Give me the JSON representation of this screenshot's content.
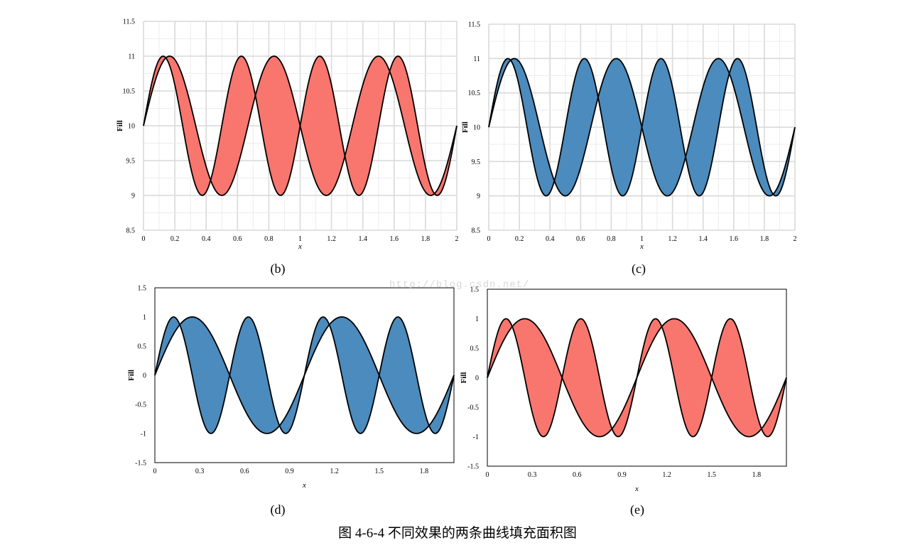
{
  "watermark": "http://blog.csdn.net/",
  "figure_caption": "图 4-6-4 不同效果的两条曲线填充面积图",
  "chart_data": [
    {
      "id": "b",
      "type": "area",
      "caption": "(b)",
      "ylabel": "Fill",
      "xlabel": "x",
      "xlim": [
        0,
        2
      ],
      "ylim": [
        8.5,
        11.5
      ],
      "xticks": [
        0,
        0.2,
        0.4,
        0.6,
        0.8,
        1,
        1.2,
        1.4,
        1.6,
        1.8,
        2
      ],
      "xtick_labels": [
        "0",
        "0.2",
        "0.4",
        "0.6",
        "0.8",
        "1",
        "1.2",
        "1.4",
        "1.6",
        "1.8",
        "2"
      ],
      "yticks": [
        8.5,
        9,
        9.5,
        10,
        10.5,
        11,
        11.5
      ],
      "ytick_labels": [
        "8.5",
        "9",
        "9.5",
        "10",
        "10.5",
        "11",
        "11.5"
      ],
      "grid": true,
      "frame": false,
      "fill_color": "#f8766d",
      "series": [
        {
          "formula": "10 + sin(4*pi*x)",
          "x_start": 0,
          "x_end": 2,
          "samples": 201
        },
        {
          "formula": "10 + sin(3*pi*x)",
          "x_start": 0,
          "x_end": 2,
          "samples": 201
        }
      ]
    },
    {
      "id": "c",
      "type": "area",
      "caption": "(c)",
      "ylabel": "Fill",
      "xlabel": "x",
      "xlim": [
        0,
        2
      ],
      "ylim": [
        8.5,
        11.5
      ],
      "xticks": [
        0,
        0.2,
        0.4,
        0.6,
        0.8,
        1,
        1.2,
        1.4,
        1.6,
        1.8,
        2
      ],
      "xtick_labels": [
        "0",
        "0.2",
        "0.4",
        "0.6",
        "0.8",
        "1",
        "1.2",
        "1.4",
        "1.6",
        "1.8",
        "2"
      ],
      "yticks": [
        8.5,
        9,
        9.5,
        10,
        10.5,
        11,
        11.5
      ],
      "ytick_labels": [
        "8.5",
        "9",
        "9.5",
        "10",
        "10.5",
        "11",
        "11.5"
      ],
      "grid": true,
      "frame": false,
      "fill_color": "#4b8bbd",
      "series": [
        {
          "formula": "10 + sin(4*pi*x)",
          "x_start": 0,
          "x_end": 2,
          "samples": 201
        },
        {
          "formula": "10 + sin(3*pi*x)",
          "x_start": 0,
          "x_end": 2,
          "samples": 201
        }
      ]
    },
    {
      "id": "d",
      "type": "area",
      "caption": "(d)",
      "ylabel": "Fill",
      "xlabel": "x",
      "xlim": [
        0,
        2
      ],
      "ylim": [
        -1.5,
        1.5
      ],
      "xticks": [
        0,
        0.3,
        0.6,
        0.9,
        1.2,
        1.5,
        1.8
      ],
      "xtick_labels": [
        "0",
        "0.3",
        "0.6",
        "0.9",
        "1.2",
        "1.5",
        "1.8"
      ],
      "yticks": [
        -1.5,
        -1,
        -0.5,
        0,
        0.5,
        1,
        1.5
      ],
      "ytick_labels": [
        "-1.5",
        "-1",
        "-0.5",
        "0",
        "0.5",
        "1",
        "1.5"
      ],
      "grid": false,
      "frame": true,
      "fill_color": "#4b8bbd",
      "series": [
        {
          "formula": "sin(4*pi*x)",
          "x_start": 0,
          "x_end": 2,
          "samples": 201
        },
        {
          "formula": "sin(2*pi*x)",
          "x_start": 0,
          "x_end": 2,
          "samples": 201
        }
      ]
    },
    {
      "id": "e",
      "type": "area",
      "caption": "(e)",
      "ylabel": "Fill",
      "xlabel": "x",
      "xlim": [
        0,
        2
      ],
      "ylim": [
        -1.5,
        1.5
      ],
      "xticks": [
        0,
        0.3,
        0.6,
        0.9,
        1.2,
        1.5,
        1.8
      ],
      "xtick_labels": [
        "0",
        "0.3",
        "0.6",
        "0.9",
        "1.2",
        "1.5",
        "1.8"
      ],
      "yticks": [
        -1.5,
        -1,
        -0.5,
        0,
        0.5,
        1,
        1.5
      ],
      "ytick_labels": [
        "-1.5",
        "-1",
        "-0.5",
        "0",
        "0.5",
        "1",
        "1.5"
      ],
      "grid": false,
      "frame": true,
      "fill_color": "#f8766d",
      "series": [
        {
          "formula": "sin(4*pi*x)",
          "x_start": 0,
          "x_end": 2,
          "samples": 201
        },
        {
          "formula": "sin(2*pi*x)",
          "x_start": 0,
          "x_end": 2,
          "samples": 201
        }
      ]
    }
  ]
}
